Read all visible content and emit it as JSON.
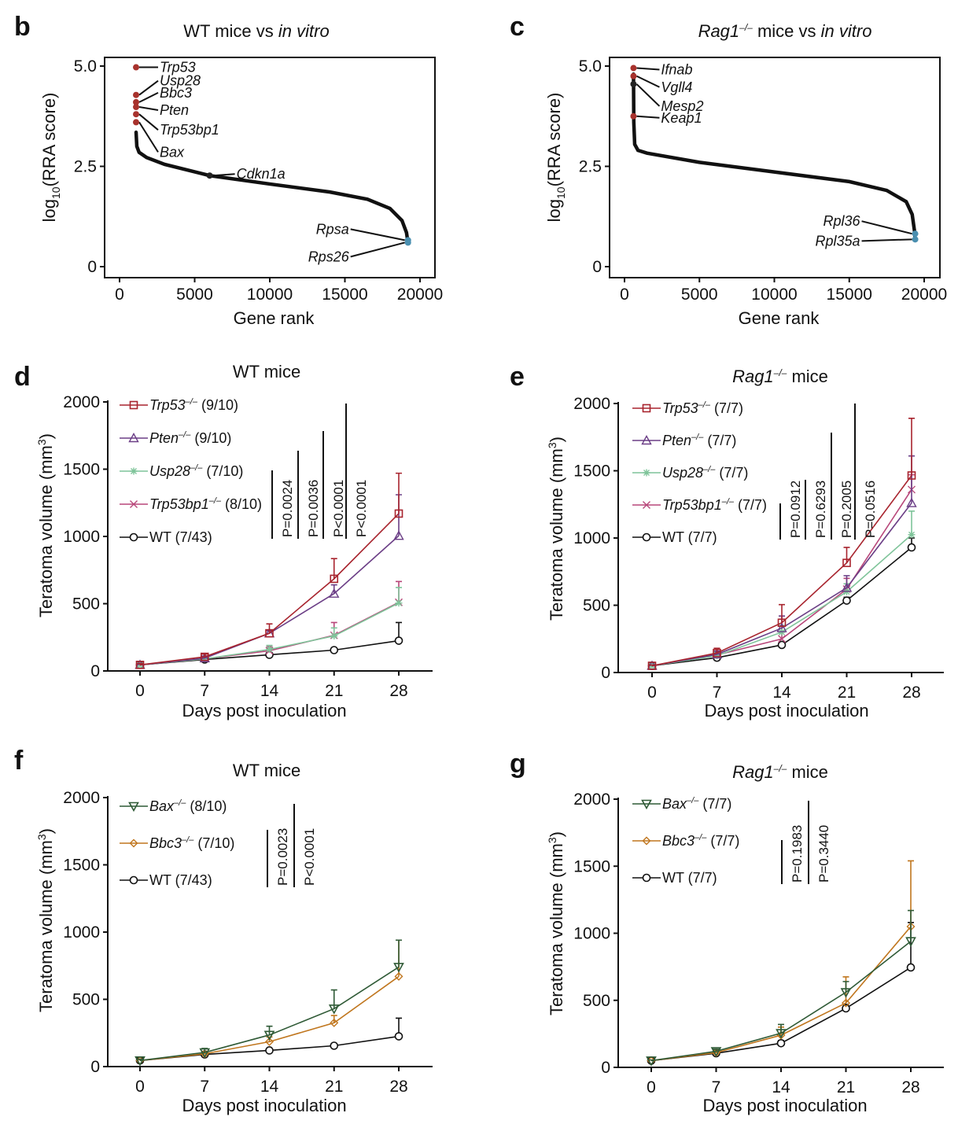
{
  "chart_data": [
    {
      "panel": "b",
      "type": "scatter",
      "title": "WT mice vs in vitro",
      "title_parts": [
        "WT mice vs ",
        "in vitro"
      ],
      "xlabel": "Gene rank",
      "ylabel": "log10(RRA score)",
      "xlim": [
        0,
        20000
      ],
      "ylim": [
        0,
        5
      ],
      "xticks": [
        "0",
        "5000",
        "10000",
        "15000",
        "20000"
      ],
      "yticks": [
        "0",
        "2.5",
        "5.0"
      ],
      "curve": [
        [
          1100,
          3.35
        ],
        [
          1150,
          3.0
        ],
        [
          1300,
          2.85
        ],
        [
          1800,
          2.72
        ],
        [
          3000,
          2.55
        ],
        [
          6000,
          2.27
        ],
        [
          10000,
          2.06
        ],
        [
          14000,
          1.86
        ],
        [
          16500,
          1.68
        ],
        [
          18000,
          1.45
        ],
        [
          18800,
          1.15
        ],
        [
          19100,
          0.85
        ],
        [
          19200,
          0.6
        ]
      ],
      "highlights": [
        {
          "gene": "Trp53",
          "x": 1100,
          "y": 4.97,
          "color": "#a8322d"
        },
        {
          "gene": "Usp28",
          "x": 1100,
          "y": 4.28,
          "color": "#a8322d"
        },
        {
          "gene": "Bbc3",
          "x": 1100,
          "y": 4.1,
          "color": "#a8322d"
        },
        {
          "gene": "Pten",
          "x": 1100,
          "y": 3.98,
          "color": "#a8322d"
        },
        {
          "gene": "Trp53bp1",
          "x": 1100,
          "y": 3.8,
          "color": "#a8322d"
        },
        {
          "gene": "Bax",
          "x": 1100,
          "y": 3.6,
          "color": "#a8322d"
        },
        {
          "gene": "Cdkn1a",
          "x": 6000,
          "y": 2.27,
          "color": "#222222"
        },
        {
          "gene": "Rpsa",
          "x": 19200,
          "y": 0.66,
          "color": "#4a8fb0"
        },
        {
          "gene": "Rps26",
          "x": 19200,
          "y": 0.6,
          "color": "#4a8fb0"
        }
      ]
    },
    {
      "panel": "c",
      "type": "scatter",
      "title": "Rag1–/– mice vs in vitro",
      "title_parts": [
        "Rag1",
        "–/–",
        " mice vs ",
        "in vitro"
      ],
      "xlabel": "Gene rank",
      "ylabel": "log10(RRA score)",
      "xlim": [
        0,
        20000
      ],
      "ylim": [
        0,
        5
      ],
      "xticks": [
        "0",
        "5000",
        "10000",
        "15000",
        "20000"
      ],
      "yticks": [
        "0",
        "2.5",
        "5.0"
      ],
      "curve": [
        [
          600,
          4.8
        ],
        [
          620,
          3.6
        ],
        [
          680,
          3.05
        ],
        [
          900,
          2.9
        ],
        [
          1500,
          2.83
        ],
        [
          5000,
          2.6
        ],
        [
          10000,
          2.36
        ],
        [
          15000,
          2.12
        ],
        [
          17500,
          1.9
        ],
        [
          18800,
          1.62
        ],
        [
          19200,
          1.3
        ],
        [
          19350,
          0.9
        ],
        [
          19400,
          0.68
        ]
      ],
      "highlights": [
        {
          "gene": "Ifnab",
          "x": 600,
          "y": 4.95,
          "color": "#a8322d"
        },
        {
          "gene": "Vgll4",
          "x": 600,
          "y": 4.75,
          "color": "#a8322d"
        },
        {
          "gene": "Mesp2",
          "x": 600,
          "y": 4.55,
          "color": "#222222"
        },
        {
          "gene": "Keap1",
          "x": 600,
          "y": 3.75,
          "color": "#a8322d"
        },
        {
          "gene": "Rpl36",
          "x": 19400,
          "y": 0.82,
          "color": "#4a8fb0"
        },
        {
          "gene": "Rpl35a",
          "x": 19400,
          "y": 0.68,
          "color": "#4a8fb0"
        }
      ]
    },
    {
      "panel": "d",
      "type": "line",
      "title": "WT mice",
      "xlabel": "Days post inoculation",
      "ylabel": "Teratoma volume (mm³)",
      "x": [
        0,
        7,
        14,
        21,
        28
      ],
      "ylim": [
        0,
        2000
      ],
      "yticks": [
        "0",
        "500",
        "1000",
        "1500",
        "2000"
      ],
      "series": [
        {
          "gene": "Trp53",
          "geno": "–/–",
          "n": "(9/10)",
          "marker": "square",
          "color": "#a8242e",
          "values": [
            45,
            105,
            280,
            685,
            1170
          ],
          "err": [
            55,
            125,
            350,
            835,
            1470
          ]
        },
        {
          "gene": "Pten",
          "geno": "–/–",
          "n": "(9/10)",
          "marker": "triangle",
          "color": "#6b3e86",
          "values": [
            45,
            95,
            280,
            575,
            1005
          ],
          "err": [
            50,
            110,
            300,
            640,
            1310
          ]
        },
        {
          "gene": "Usp28",
          "geno": "–/–",
          "n": "(7/10)",
          "marker": "star",
          "color": "#7fc49a",
          "values": [
            45,
            90,
            160,
            260,
            505
          ],
          "err": [
            50,
            100,
            190,
            320,
            620
          ]
        },
        {
          "gene": "Trp53bp1",
          "geno": "–/–",
          "n": "(8/10)",
          "marker": "x",
          "color": "#b8477a",
          "values": [
            45,
            90,
            150,
            265,
            510
          ],
          "err": [
            50,
            100,
            180,
            360,
            665
          ]
        },
        {
          "gene": "WT",
          "geno": "",
          "n": "(7/43)",
          "marker": "circle",
          "color": "#111111",
          "values": [
            45,
            85,
            120,
            155,
            225
          ],
          "err": [
            50,
            95,
            130,
            160,
            360
          ]
        }
      ],
      "pvalues": [
        "P=0.0024",
        "P=0.0036",
        "P<0.0001",
        "P<0.0001"
      ]
    },
    {
      "panel": "e",
      "type": "line",
      "title": "Rag1–/– mice",
      "xlabel": "Days post inoculation",
      "ylabel": "Teratoma volume (mm³)",
      "x": [
        0,
        7,
        14,
        21,
        28
      ],
      "ylim": [
        0,
        2000
      ],
      "yticks": [
        "0",
        "500",
        "1000",
        "1500",
        "2000"
      ],
      "series": [
        {
          "gene": "Trp53",
          "geno": "–/–",
          "n": "(7/7)",
          "marker": "square",
          "color": "#a8242e",
          "values": [
            50,
            145,
            370,
            815,
            1465
          ],
          "err": [
            55,
            180,
            505,
            930,
            1890
          ]
        },
        {
          "gene": "Pten",
          "geno": "–/–",
          "n": "(7/7)",
          "marker": "triangle",
          "color": "#6b3e86",
          "values": [
            50,
            135,
            330,
            630,
            1260
          ],
          "err": [
            55,
            160,
            420,
            720,
            1610
          ]
        },
        {
          "gene": "Usp28",
          "geno": "–/–",
          "n": "(7/7)",
          "marker": "star",
          "color": "#7fc49a",
          "values": [
            50,
            125,
            300,
            600,
            1025
          ],
          "err": [
            55,
            150,
            350,
            660,
            1200
          ]
        },
        {
          "gene": "Trp53bp1",
          "geno": "–/–",
          "n": "(7/7)",
          "marker": "x",
          "color": "#b8477a",
          "values": [
            50,
            130,
            250,
            620,
            1360
          ],
          "err": [
            55,
            150,
            300,
            700,
            1470
          ]
        },
        {
          "gene": "WT",
          "geno": "",
          "n": "(7/7)",
          "marker": "circle",
          "color": "#111111",
          "values": [
            50,
            110,
            205,
            535,
            930
          ],
          "err": [
            55,
            120,
            230,
            560,
            1000
          ]
        }
      ],
      "pvalues": [
        "P=0.0912",
        "P=0.6293",
        "P=0.2005",
        "P=0.0516"
      ]
    },
    {
      "panel": "f",
      "type": "line",
      "title": "WT mice",
      "xlabel": "Days post inoculation",
      "ylabel": "Teratoma volume (mm³)",
      "x": [
        0,
        7,
        14,
        21,
        28
      ],
      "ylim": [
        0,
        2000
      ],
      "yticks": [
        "0",
        "500",
        "1000",
        "1500",
        "2000"
      ],
      "series": [
        {
          "gene": "Bax",
          "geno": "–/–",
          "n": "(8/10)",
          "marker": "triangle-down",
          "color": "#2f5a36",
          "values": [
            45,
            105,
            235,
            430,
            740
          ],
          "err": [
            55,
            135,
            300,
            570,
            940
          ]
        },
        {
          "gene": "Bbc3",
          "geno": "–/–",
          "n": "(7/10)",
          "marker": "diamond",
          "color": "#c0761e",
          "values": [
            45,
            95,
            185,
            325,
            670
          ],
          "err": [
            50,
            110,
            220,
            380,
            940
          ]
        },
        {
          "gene": "WT",
          "geno": "",
          "n": "(7/43)",
          "marker": "circle",
          "color": "#111111",
          "values": [
            45,
            90,
            120,
            155,
            225
          ],
          "err": [
            50,
            95,
            130,
            160,
            360
          ]
        }
      ],
      "pvalues": [
        "P=0.0023",
        "P<0.0001"
      ]
    },
    {
      "panel": "g",
      "type": "line",
      "title": "Rag1–/– mice",
      "xlabel": "Days post inoculation",
      "ylabel": "Teratoma volume (mm³)",
      "x": [
        0,
        7,
        14,
        21,
        28
      ],
      "ylim": [
        0,
        2000
      ],
      "yticks": [
        "0",
        "500",
        "1000",
        "1500",
        "2000"
      ],
      "series": [
        {
          "gene": "Bax",
          "geno": "–/–",
          "n": "(7/7)",
          "marker": "triangle-down",
          "color": "#2f5a36",
          "values": [
            50,
            120,
            255,
            560,
            940
          ],
          "err": [
            55,
            135,
            320,
            640,
            1170
          ]
        },
        {
          "gene": "Bbc3",
          "geno": "–/–",
          "n": "(7/7)",
          "marker": "diamond",
          "color": "#c0761e",
          "values": [
            50,
            110,
            240,
            480,
            1050
          ],
          "err": [
            55,
            125,
            300,
            675,
            1540
          ]
        },
        {
          "gene": "WT",
          "geno": "",
          "n": "(7/7)",
          "marker": "circle",
          "color": "#111111",
          "values": [
            50,
            105,
            180,
            440,
            745
          ],
          "err": [
            55,
            115,
            200,
            470,
            1080
          ]
        }
      ],
      "pvalues": [
        "P=0.1983",
        "P=0.3440"
      ]
    }
  ]
}
